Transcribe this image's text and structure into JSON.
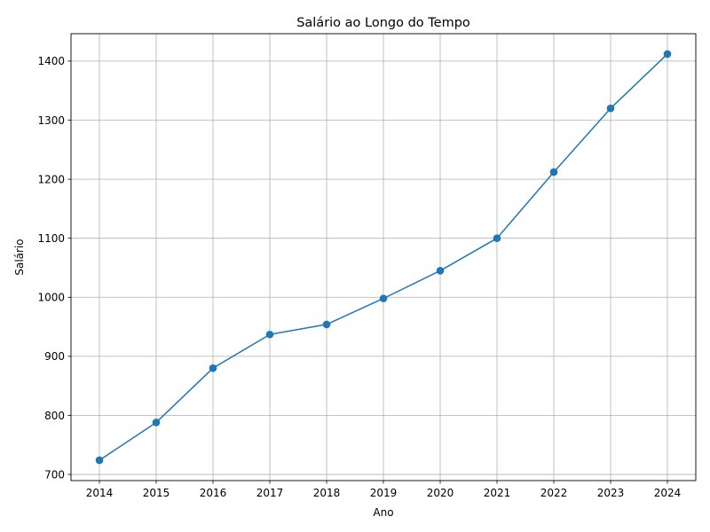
{
  "chart_data": {
    "type": "line",
    "title": "Salário ao Longo do Tempo",
    "xlabel": "Ano",
    "ylabel": "Salário",
    "x": [
      2014,
      2015,
      2016,
      2017,
      2018,
      2019,
      2020,
      2021,
      2022,
      2023,
      2024
    ],
    "series": [
      {
        "values": [
          724,
          788,
          880,
          937,
          954,
          998,
          1045,
          1100,
          1212,
          1320,
          1412
        ],
        "color": "#1f77b4",
        "marker": "circle"
      }
    ],
    "xticks": [
      "2014",
      "2015",
      "2016",
      "2017",
      "2018",
      "2019",
      "2020",
      "2021",
      "2022",
      "2023",
      "2024"
    ],
    "yticks": [
      "700",
      "800",
      "900",
      "1000",
      "1100",
      "1200",
      "1300",
      "1400"
    ],
    "xlim": [
      2013.5,
      2024.5
    ],
    "ylim": [
      689.6,
      1446.4
    ],
    "grid": true
  }
}
